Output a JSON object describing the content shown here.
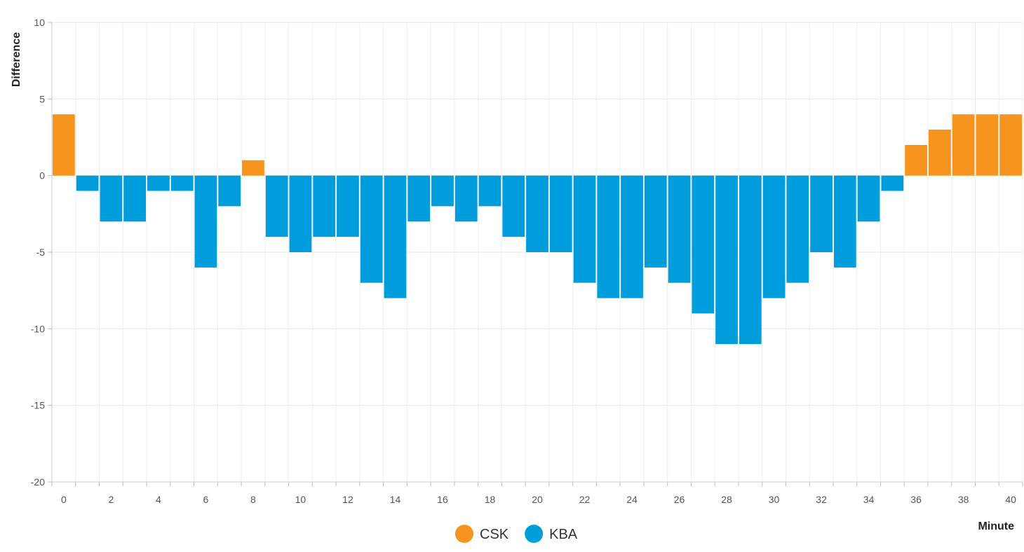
{
  "chart_data": {
    "type": "bar",
    "xlabel": "Minute",
    "ylabel": "Difference",
    "xlim": [
      -0.5,
      40.5
    ],
    "ylim": [
      -20,
      10
    ],
    "yticks": [
      -20,
      -15,
      -10,
      -5,
      0,
      5,
      10
    ],
    "xticks": [
      0,
      2,
      4,
      6,
      8,
      10,
      12,
      14,
      16,
      18,
      20,
      22,
      24,
      26,
      28,
      30,
      32,
      34,
      36,
      38,
      40
    ],
    "grid": true,
    "legend_position": "bottom-center",
    "series": [
      {
        "name": "CSK",
        "color": "#f7941d"
      },
      {
        "name": "KBA",
        "color": "#009ddc"
      }
    ],
    "x": [
      0,
      1,
      2,
      3,
      4,
      5,
      6,
      7,
      8,
      9,
      10,
      11,
      12,
      13,
      14,
      15,
      16,
      17,
      18,
      19,
      20,
      21,
      22,
      23,
      24,
      25,
      26,
      27,
      28,
      29,
      30,
      31,
      32,
      33,
      34,
      35,
      36,
      37,
      38,
      39,
      40
    ],
    "values": [
      4,
      -1,
      -3,
      -3,
      -1,
      -1,
      -6,
      -2,
      1,
      -4,
      -5,
      -4,
      -4,
      -7,
      -8,
      -3,
      -2,
      -3,
      -2,
      -4,
      -5,
      -5,
      -7,
      -8,
      -8,
      -6,
      -7,
      -9,
      -11,
      -11,
      -8,
      -7,
      -5,
      -6,
      -3,
      -1,
      2,
      3,
      4,
      4,
      4
    ]
  }
}
